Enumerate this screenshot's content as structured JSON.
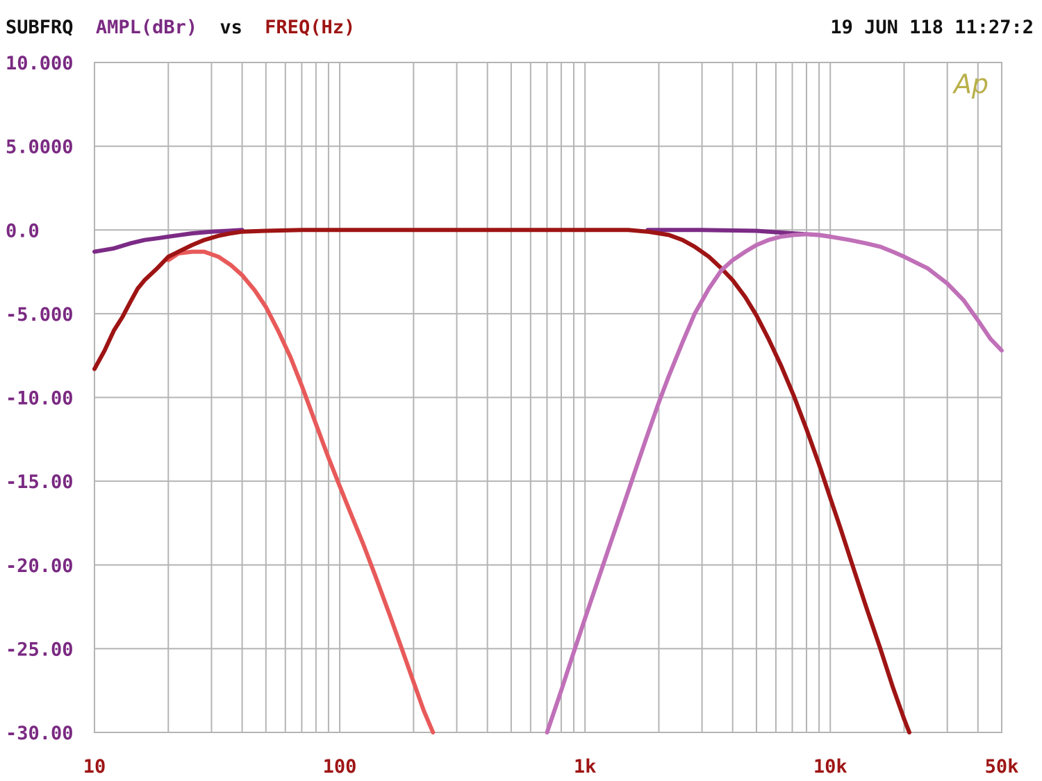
{
  "header": {
    "test_name": "SUBFRQ",
    "y_quantity": "AMPL(dBr)",
    "vs_word": "vs",
    "x_quantity": "FREQ(Hz)",
    "timestamp": "19 JUN 118 11:27:2"
  },
  "logo_text": "Ap",
  "colors": {
    "header_black": "#111111",
    "y_label_purple": "#7a2a82",
    "x_label_red": "#9e1414",
    "grid": "#b4b4b4",
    "logo": "#b9b04a"
  },
  "chart_data": {
    "type": "line",
    "title": "",
    "xlabel": "FREQ(Hz)",
    "ylabel": "AMPL(dBr)",
    "x_scale": "log",
    "xlim": [
      10,
      50000
    ],
    "ylim": [
      -30,
      10
    ],
    "grid": true,
    "y_ticks": [
      {
        "value": 10,
        "label": "10.000"
      },
      {
        "value": 5,
        "label": "5.0000"
      },
      {
        "value": 0,
        "label": "0.0"
      },
      {
        "value": -5,
        "label": "-5.000"
      },
      {
        "value": -10,
        "label": "-10.00"
      },
      {
        "value": -15,
        "label": "-15.00"
      },
      {
        "value": -20,
        "label": "-20.00"
      },
      {
        "value": -25,
        "label": "-25.00"
      },
      {
        "value": -30,
        "label": "-30.00"
      }
    ],
    "x_ticks": [
      {
        "value": 10,
        "label": "10"
      },
      {
        "value": 100,
        "label": "100"
      },
      {
        "value": 1000,
        "label": "1k"
      },
      {
        "value": 10000,
        "label": "10k"
      },
      {
        "value": 50000,
        "label": "50k"
      }
    ],
    "series": [
      {
        "color": "#e85a5a",
        "points": [
          [
            20,
            -1.8
          ],
          [
            22,
            -1.4
          ],
          [
            25,
            -1.3
          ],
          [
            28,
            -1.3
          ],
          [
            32,
            -1.6
          ],
          [
            36,
            -2.1
          ],
          [
            40,
            -2.7
          ],
          [
            45,
            -3.6
          ],
          [
            50,
            -4.6
          ],
          [
            56,
            -6.0
          ],
          [
            63,
            -7.6
          ],
          [
            70,
            -9.3
          ],
          [
            80,
            -11.6
          ],
          [
            90,
            -13.6
          ],
          [
            100,
            -15.3
          ],
          [
            110,
            -16.8
          ],
          [
            125,
            -18.8
          ],
          [
            140,
            -20.7
          ],
          [
            160,
            -23.0
          ],
          [
            180,
            -25.1
          ],
          [
            200,
            -27.0
          ],
          [
            220,
            -28.7
          ],
          [
            240,
            -30.0
          ]
        ]
      },
      {
        "color": "#7b2b85",
        "points": [
          [
            10,
            -1.3
          ],
          [
            12,
            -1.1
          ],
          [
            14,
            -0.8
          ],
          [
            16,
            -0.6
          ],
          [
            18,
            -0.5
          ],
          [
            20,
            -0.4
          ],
          [
            25,
            -0.2
          ],
          [
            30,
            -0.1
          ],
          [
            35,
            -0.05
          ],
          [
            40,
            0
          ]
        ]
      },
      {
        "color": "#7b2b85",
        "points": [
          [
            1800,
            0
          ],
          [
            3000,
            0
          ],
          [
            5000,
            -0.05
          ],
          [
            7000,
            -0.2
          ],
          [
            9000,
            -0.3
          ],
          [
            10000,
            -0.4
          ]
        ]
      },
      {
        "color": "#9e1414",
        "points": [
          [
            10,
            -8.3
          ],
          [
            11,
            -7.2
          ],
          [
            12,
            -6.0
          ],
          [
            13,
            -5.2
          ],
          [
            14,
            -4.3
          ],
          [
            15,
            -3.5
          ],
          [
            16,
            -3.0
          ],
          [
            18,
            -2.3
          ],
          [
            20,
            -1.6
          ],
          [
            22,
            -1.3
          ],
          [
            25,
            -0.9
          ],
          [
            28,
            -0.6
          ],
          [
            32,
            -0.35
          ],
          [
            36,
            -0.2
          ],
          [
            40,
            -0.1
          ],
          [
            50,
            -0.05
          ],
          [
            70,
            0
          ],
          [
            100,
            0
          ],
          [
            300,
            0
          ],
          [
            1000,
            0
          ],
          [
            1500,
            0
          ],
          [
            1800,
            -0.1
          ],
          [
            2000,
            -0.2
          ],
          [
            2200,
            -0.3
          ],
          [
            2500,
            -0.6
          ],
          [
            2800,
            -1.0
          ],
          [
            3200,
            -1.6
          ],
          [
            3600,
            -2.3
          ],
          [
            4000,
            -3.0
          ],
          [
            4500,
            -4.0
          ],
          [
            5000,
            -5.1
          ],
          [
            5600,
            -6.5
          ],
          [
            6300,
            -8.1
          ],
          [
            7100,
            -9.9
          ],
          [
            8000,
            -11.9
          ],
          [
            9000,
            -14.0
          ],
          [
            10000,
            -16.0
          ],
          [
            11000,
            -17.8
          ],
          [
            12500,
            -20.3
          ],
          [
            14000,
            -22.5
          ],
          [
            16000,
            -25.0
          ],
          [
            18000,
            -27.3
          ],
          [
            20000,
            -29.2
          ],
          [
            21000,
            -30.0
          ]
        ]
      },
      {
        "color": "#c070b8",
        "points": [
          [
            700,
            -30.0
          ],
          [
            800,
            -27.5
          ],
          [
            900,
            -25.2
          ],
          [
            1000,
            -23.2
          ],
          [
            1100,
            -21.4
          ],
          [
            1250,
            -19.0
          ],
          [
            1400,
            -16.9
          ],
          [
            1600,
            -14.4
          ],
          [
            1800,
            -12.2
          ],
          [
            2000,
            -10.3
          ],
          [
            2200,
            -8.7
          ],
          [
            2500,
            -6.7
          ],
          [
            2800,
            -5.0
          ],
          [
            3200,
            -3.5
          ],
          [
            3600,
            -2.4
          ],
          [
            4000,
            -1.8
          ],
          [
            4500,
            -1.3
          ],
          [
            5000,
            -0.9
          ],
          [
            5600,
            -0.6
          ],
          [
            6300,
            -0.4
          ],
          [
            7100,
            -0.3
          ],
          [
            8000,
            -0.25
          ],
          [
            9000,
            -0.3
          ],
          [
            10000,
            -0.4
          ],
          [
            12000,
            -0.6
          ],
          [
            14000,
            -0.8
          ],
          [
            16000,
            -1.0
          ],
          [
            18000,
            -1.3
          ],
          [
            20000,
            -1.6
          ],
          [
            25000,
            -2.3
          ],
          [
            30000,
            -3.2
          ],
          [
            35000,
            -4.2
          ],
          [
            40000,
            -5.4
          ],
          [
            45000,
            -6.5
          ],
          [
            50000,
            -7.2
          ]
        ]
      }
    ]
  }
}
